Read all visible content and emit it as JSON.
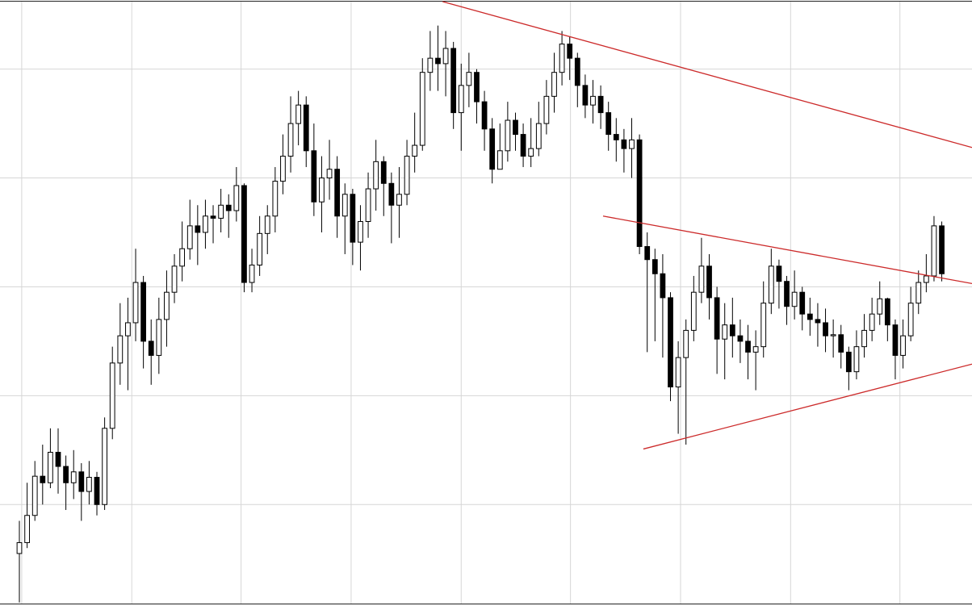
{
  "chart_data": {
    "type": "candlestick",
    "categories": [
      null,
      null,
      null,
      null,
      null,
      null,
      null,
      null,
      null,
      null,
      null,
      null,
      null,
      null,
      null,
      null,
      null,
      null,
      null,
      null,
      null,
      null,
      null,
      null,
      null,
      null,
      null,
      null,
      null,
      null,
      null,
      null,
      null,
      null,
      null,
      null,
      null,
      null,
      null,
      null,
      null,
      null,
      null,
      null,
      null,
      null,
      null,
      null,
      null,
      null,
      null,
      null,
      null,
      null,
      null,
      null,
      null,
      null,
      null,
      null,
      null,
      null,
      null,
      null,
      null,
      null,
      null,
      null,
      null,
      null,
      null,
      null,
      null,
      null,
      null,
      null,
      null,
      null,
      null,
      null,
      null,
      null,
      null,
      null,
      null,
      null,
      null,
      null,
      null,
      null,
      null,
      null,
      null,
      null,
      null,
      null,
      null,
      null,
      null,
      null,
      null,
      null,
      null,
      null,
      null,
      null,
      null,
      null,
      null,
      null,
      null,
      null,
      null,
      null,
      null,
      null,
      null,
      null,
      null,
      null
    ],
    "open": [
      5.5,
      6.5,
      9.0,
      12.6,
      12.0,
      14.8,
      13.5,
      12.0,
      13.0,
      11.2,
      12.5,
      10.0,
      17.0,
      23.0,
      25.5,
      26.7,
      30.4,
      25.0,
      23.7,
      27.0,
      29.5,
      31.9,
      33.5,
      35.6,
      35.0,
      36.5,
      36.3,
      37.5,
      37.0,
      39.3,
      30.4,
      32.0,
      34.9,
      36.5,
      39.7,
      42.0,
      45.0,
      46.7,
      42.5,
      37.8,
      40.0,
      40.8,
      36.5,
      38.5,
      34.1,
      36.0,
      39.0,
      41.5,
      39.5,
      37.5,
      38.5,
      42.0,
      43.0,
      49.7,
      51.0,
      50.5,
      51.9,
      46.0,
      48.5,
      49.7,
      47.0,
      44.5,
      40.8,
      42.5,
      45.3,
      44.0,
      42.0,
      42.7,
      45.0,
      47.5,
      49.7,
      52.3,
      51.0,
      48.5,
      46.7,
      47.5,
      46.0,
      44.0,
      43.5,
      42.7,
      43.5,
      33.7,
      32.5,
      31.2,
      29.0,
      20.8,
      23.5,
      26.0,
      29.5,
      31.9,
      29.0,
      25.2,
      26.5,
      25.5,
      25.0,
      24.0,
      24.5,
      28.5,
      31.9,
      30.5,
      28.2,
      29.5,
      27.5,
      27.0,
      26.7,
      25.5,
      25.6,
      24.0,
      22.2,
      24.5,
      26.0,
      27.5,
      28.9,
      26.5,
      23.7,
      25.5,
      28.5,
      30.4,
      31.0,
      35.6
    ],
    "high": [
      8.5,
      12.0,
      14.0,
      15.5,
      17.0,
      17.0,
      14.5,
      15.0,
      13.8,
      14.0,
      13.0,
      18.0,
      24.5,
      28.5,
      29.0,
      33.5,
      31.0,
      27.0,
      29.0,
      31.5,
      33.0,
      36.0,
      38.0,
      37.5,
      38.0,
      37.5,
      39.0,
      38.5,
      41.0,
      39.5,
      33.5,
      36.5,
      37.5,
      41.0,
      44.0,
      47.5,
      48.0,
      47.5,
      45.0,
      42.0,
      43.5,
      42.0,
      39.5,
      39.0,
      37.5,
      40.5,
      43.5,
      42.0,
      40.5,
      41.0,
      43.5,
      46.0,
      51.0,
      53.5,
      54.0,
      53.5,
      52.5,
      50.5,
      51.5,
      50.0,
      48.0,
      45.5,
      45.0,
      47.0,
      46.0,
      45.0,
      45.5,
      47.0,
      49.0,
      51.5,
      53.5,
      53.0,
      51.5,
      49.5,
      49.0,
      48.5,
      47.0,
      45.5,
      44.5,
      45.5,
      44.0,
      35.0,
      33.5,
      33.0,
      29.5,
      25.0,
      27.0,
      31.0,
      34.5,
      33.0,
      30.0,
      28.5,
      29.0,
      27.0,
      26.5,
      26.0,
      30.5,
      33.5,
      32.5,
      31.0,
      31.5,
      30.0,
      29.0,
      28.5,
      28.0,
      27.0,
      26.5,
      24.5,
      26.0,
      27.5,
      29.0,
      30.5,
      29.0,
      27.0,
      27.0,
      30.0,
      31.5,
      33.0,
      36.5,
      36.0
    ],
    "low": [
      1.0,
      6.0,
      8.5,
      10.0,
      11.5,
      11.0,
      9.5,
      10.5,
      8.5,
      10.0,
      9.0,
      9.5,
      16.0,
      21.0,
      20.5,
      25.0,
      22.5,
      21.0,
      22.0,
      24.5,
      28.5,
      30.5,
      32.5,
      32.0,
      33.5,
      34.0,
      35.0,
      34.5,
      36.0,
      29.5,
      29.5,
      31.0,
      33.0,
      35.0,
      38.5,
      40.5,
      43.0,
      41.0,
      36.5,
      35.0,
      38.0,
      34.5,
      33.0,
      32.0,
      31.5,
      34.5,
      37.0,
      36.5,
      34.0,
      34.5,
      37.5,
      40.5,
      42.5,
      48.0,
      48.0,
      47.5,
      44.5,
      42.5,
      46.5,
      45.0,
      42.5,
      39.5,
      41.0,
      41.5,
      42.5,
      41.0,
      41.0,
      42.0,
      44.0,
      46.0,
      48.5,
      49.0,
      46.5,
      45.5,
      45.0,
      44.5,
      42.5,
      41.5,
      40.5,
      40.0,
      33.0,
      24.0,
      25.0,
      23.5,
      19.5,
      16.5,
      15.5,
      25.0,
      28.5,
      27.0,
      22.0,
      21.5,
      23.5,
      23.0,
      21.5,
      20.5,
      23.5,
      27.5,
      28.0,
      26.5,
      27.0,
      26.0,
      25.5,
      24.5,
      24.0,
      23.5,
      22.5,
      20.5,
      21.5,
      23.5,
      25.0,
      26.5,
      25.0,
      21.5,
      22.5,
      25.0,
      27.5,
      29.5,
      30.5,
      30.5
    ],
    "close": [
      6.5,
      9.0,
      12.6,
      12.0,
      14.8,
      13.5,
      12.0,
      13.0,
      11.2,
      12.5,
      10.0,
      17.0,
      23.0,
      25.5,
      26.7,
      30.4,
      25.0,
      23.7,
      27.0,
      29.5,
      31.9,
      33.5,
      35.6,
      35.0,
      36.5,
      36.3,
      37.5,
      37.0,
      39.3,
      30.4,
      32.0,
      34.9,
      36.5,
      39.7,
      42.0,
      45.0,
      46.7,
      42.5,
      37.8,
      40.0,
      40.8,
      36.5,
      38.5,
      34.1,
      36.0,
      39.0,
      41.5,
      39.5,
      37.5,
      38.5,
      42.0,
      43.0,
      49.7,
      51.0,
      50.5,
      51.9,
      46.0,
      48.5,
      49.7,
      47.0,
      44.5,
      40.8,
      42.5,
      45.3,
      44.0,
      42.0,
      42.7,
      45.0,
      47.5,
      49.7,
      52.3,
      51.0,
      48.5,
      46.7,
      47.5,
      46.0,
      44.0,
      43.5,
      42.7,
      43.5,
      33.7,
      32.5,
      31.2,
      29.0,
      20.8,
      23.5,
      26.0,
      29.5,
      31.9,
      29.0,
      25.2,
      26.5,
      25.5,
      25.0,
      24.0,
      24.5,
      28.5,
      31.9,
      30.5,
      28.2,
      29.5,
      27.5,
      27.0,
      26.7,
      25.5,
      25.6,
      24.0,
      22.2,
      24.5,
      26.0,
      27.5,
      28.9,
      26.5,
      23.7,
      25.5,
      28.5,
      30.4,
      31.0,
      35.6,
      31.2
    ],
    "up_color": "#ffffff",
    "down_color": "#000000",
    "xlim": [
      -2.5,
      122.9
    ],
    "xticks": [
      0.3,
      14.5,
      28.6,
      42.8,
      57.0,
      71.1,
      85.3,
      99.5,
      113.6
    ],
    "ylim": [
      0.9,
      56.2
    ],
    "yticks": [
      10,
      20,
      30,
      40,
      50
    ],
    "grid": true,
    "trendlines": [
      {
        "x": [
          54.6,
          122.9
        ],
        "y": [
          56.2,
          42.8
        ],
        "color": "#cc2a2a"
      },
      {
        "x": [
          75.3,
          122.9
        ],
        "y": [
          36.5,
          30.3
        ],
        "color": "#cc2a2a"
      },
      {
        "x": [
          80.5,
          122.9
        ],
        "y": [
          15.1,
          22.9
        ],
        "color": "#cc2a2a"
      }
    ]
  }
}
